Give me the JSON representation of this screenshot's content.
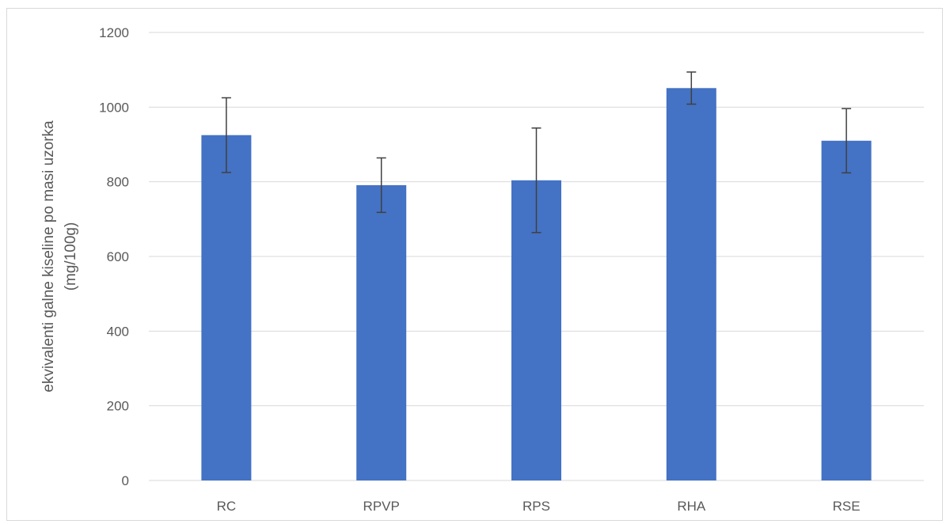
{
  "chart_data": {
    "type": "bar",
    "title": "",
    "xlabel": "",
    "ylabel_lines": [
      "ekvivalenti galne kiseline po masi uzorka",
      "(mg/100g)"
    ],
    "categories": [
      "RC",
      "RPVP",
      "RPS",
      "RHA",
      "RSE"
    ],
    "values": [
      925,
      791,
      804,
      1051,
      910
    ],
    "error_bars": [
      100,
      73,
      140,
      43,
      86
    ],
    "ylim": [
      0,
      1200
    ],
    "yticks": [
      0,
      200,
      400,
      600,
      800,
      1000,
      1200
    ],
    "grid": true,
    "bar_color": "#4472c4",
    "error_bar_color": "#404040",
    "grid_color": "#d9d9d9"
  }
}
